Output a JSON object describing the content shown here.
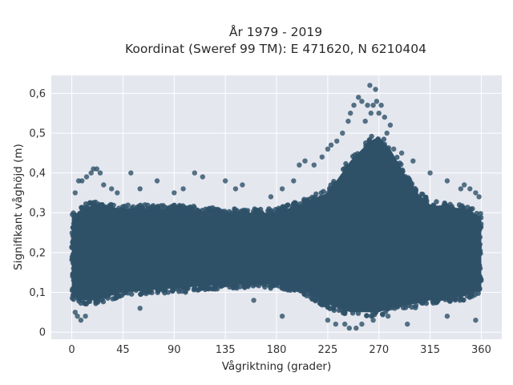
{
  "chart_data": {
    "type": "scatter",
    "title": "År 1979 - 2019",
    "subtitle": "Koordinat (Sweref 99 TM): E 471620, N 6210404",
    "xlabel": "Vågriktning (grader)",
    "ylabel": "Signifikant våghöjd (m)",
    "xlim": [
      -18,
      378
    ],
    "ylim": [
      -0.018,
      0.645
    ],
    "xticks": [
      0,
      45,
      90,
      135,
      180,
      225,
      270,
      315,
      360
    ],
    "xtick_labels": [
      "0",
      "45",
      "90",
      "135",
      "180",
      "225",
      "270",
      "315",
      "360"
    ],
    "yticks": [
      0,
      0.1,
      0.2,
      0.3,
      0.4,
      0.5,
      0.6
    ],
    "ytick_labels": [
      "0",
      "0,1",
      "0,2",
      "0,3",
      "0,4",
      "0,5",
      "0,6"
    ],
    "grid": true,
    "colors": {
      "background": "#e5e7ef",
      "grid": "#ffffff",
      "marker": "#2e5168"
    },
    "envelope": {
      "direction": [
        0,
        10,
        20,
        45,
        90,
        135,
        180,
        200,
        225,
        245,
        262,
        270,
        280,
        300,
        315,
        345,
        360
      ],
      "upper_bulk": [
        0.3,
        0.32,
        0.33,
        0.32,
        0.32,
        0.31,
        0.31,
        0.33,
        0.36,
        0.44,
        0.49,
        0.5,
        0.47,
        0.37,
        0.33,
        0.32,
        0.3
      ],
      "lower_bulk": [
        0.08,
        0.07,
        0.07,
        0.09,
        0.1,
        0.11,
        0.11,
        0.1,
        0.06,
        0.04,
        0.04,
        0.04,
        0.05,
        0.06,
        0.07,
        0.08,
        0.1
      ]
    },
    "outliers": {
      "x": [
        3,
        6,
        9,
        13,
        17,
        19,
        22,
        25,
        28,
        35,
        40,
        52,
        60,
        75,
        90,
        98,
        108,
        115,
        135,
        144,
        150,
        175,
        185,
        195,
        200,
        205,
        213,
        220,
        225,
        228,
        233,
        238,
        243,
        245,
        248,
        252,
        255,
        258,
        260,
        262,
        263,
        265,
        267,
        268,
        270,
        272,
        275,
        277,
        280,
        283,
        290,
        300,
        315,
        330,
        342,
        345,
        350,
        355,
        358,
        3,
        5,
        8,
        12,
        225,
        232,
        240,
        244,
        250,
        255,
        265,
        278,
        295,
        330,
        355,
        160,
        100,
        60,
        185
      ],
      "y": [
        0.35,
        0.38,
        0.38,
        0.39,
        0.4,
        0.41,
        0.41,
        0.4,
        0.37,
        0.36,
        0.35,
        0.4,
        0.36,
        0.38,
        0.35,
        0.36,
        0.4,
        0.39,
        0.38,
        0.36,
        0.37,
        0.34,
        0.36,
        0.38,
        0.42,
        0.43,
        0.42,
        0.44,
        0.46,
        0.47,
        0.48,
        0.5,
        0.53,
        0.55,
        0.57,
        0.59,
        0.58,
        0.53,
        0.57,
        0.62,
        0.55,
        0.57,
        0.61,
        0.58,
        0.55,
        0.57,
        0.54,
        0.5,
        0.52,
        0.46,
        0.45,
        0.43,
        0.4,
        0.38,
        0.36,
        0.37,
        0.36,
        0.35,
        0.34,
        0.05,
        0.04,
        0.03,
        0.04,
        0.03,
        0.02,
        0.02,
        0.01,
        0.01,
        0.02,
        0.03,
        0.04,
        0.02,
        0.04,
        0.03,
        0.08,
        0.1,
        0.06,
        0.04
      ]
    }
  }
}
